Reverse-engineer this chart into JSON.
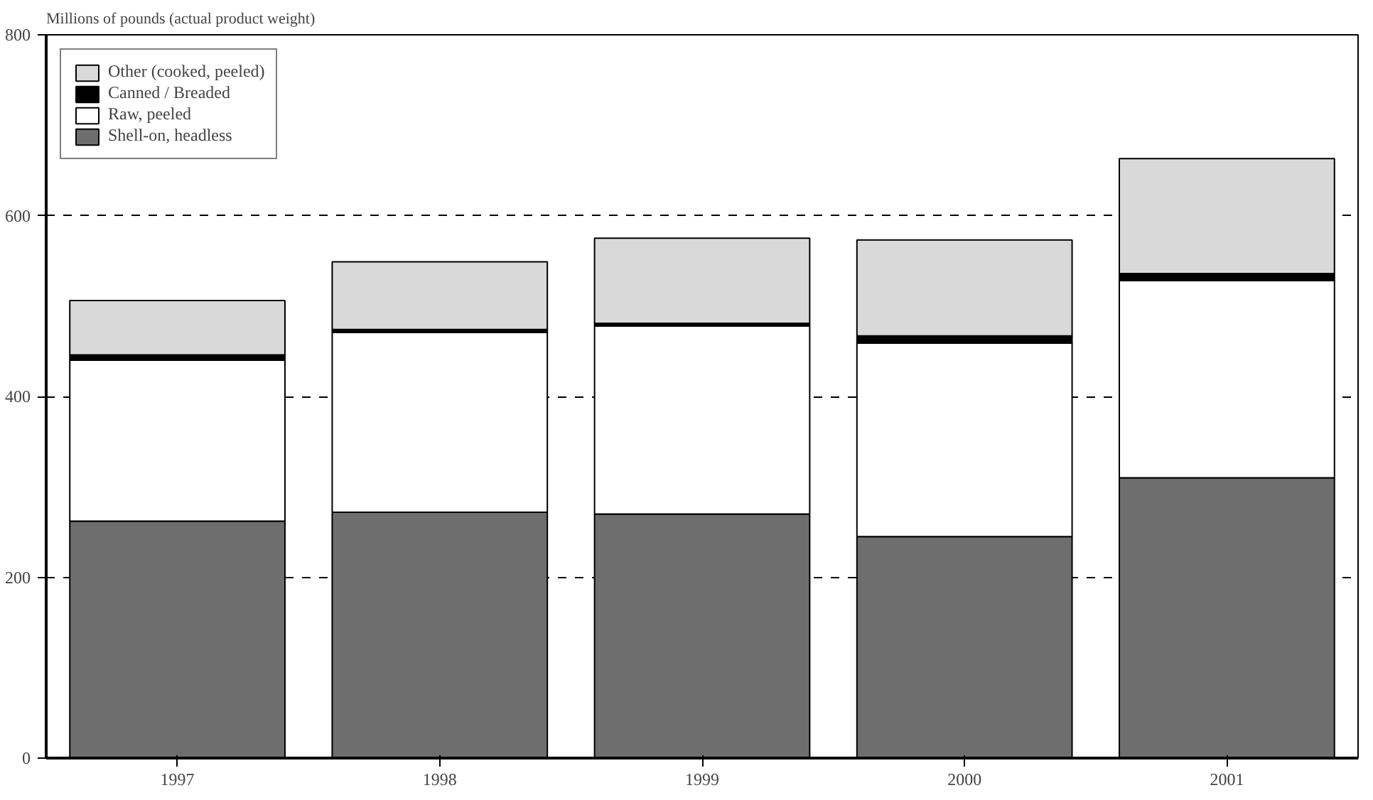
{
  "chart_data": {
    "type": "bar",
    "stacked": true,
    "ylabel": "Millions of pounds (actual product weight)",
    "categories": [
      "1997",
      "1998",
      "1999",
      "2000",
      "2001"
    ],
    "series": [
      {
        "name": "Shell-on, headless",
        "color": "#6e6e6e",
        "values": [
          262,
          272,
          270,
          245,
          310
        ]
      },
      {
        "name": "Raw, peeled",
        "color": "#ffffff",
        "values": [
          178,
          199,
          208,
          214,
          218
        ]
      },
      {
        "name": "Canned / Breaded",
        "color": "#000000",
        "values": [
          6,
          3,
          3,
          8,
          8
        ]
      },
      {
        "name": "Other (cooked, peeled)",
        "color": "#d9d9d9",
        "values": [
          60,
          75,
          94,
          106,
          127
        ]
      }
    ],
    "ylim": [
      0,
      800
    ],
    "yticks": [
      0,
      200,
      400,
      600,
      800
    ],
    "grid": "y",
    "legend": "top left"
  }
}
